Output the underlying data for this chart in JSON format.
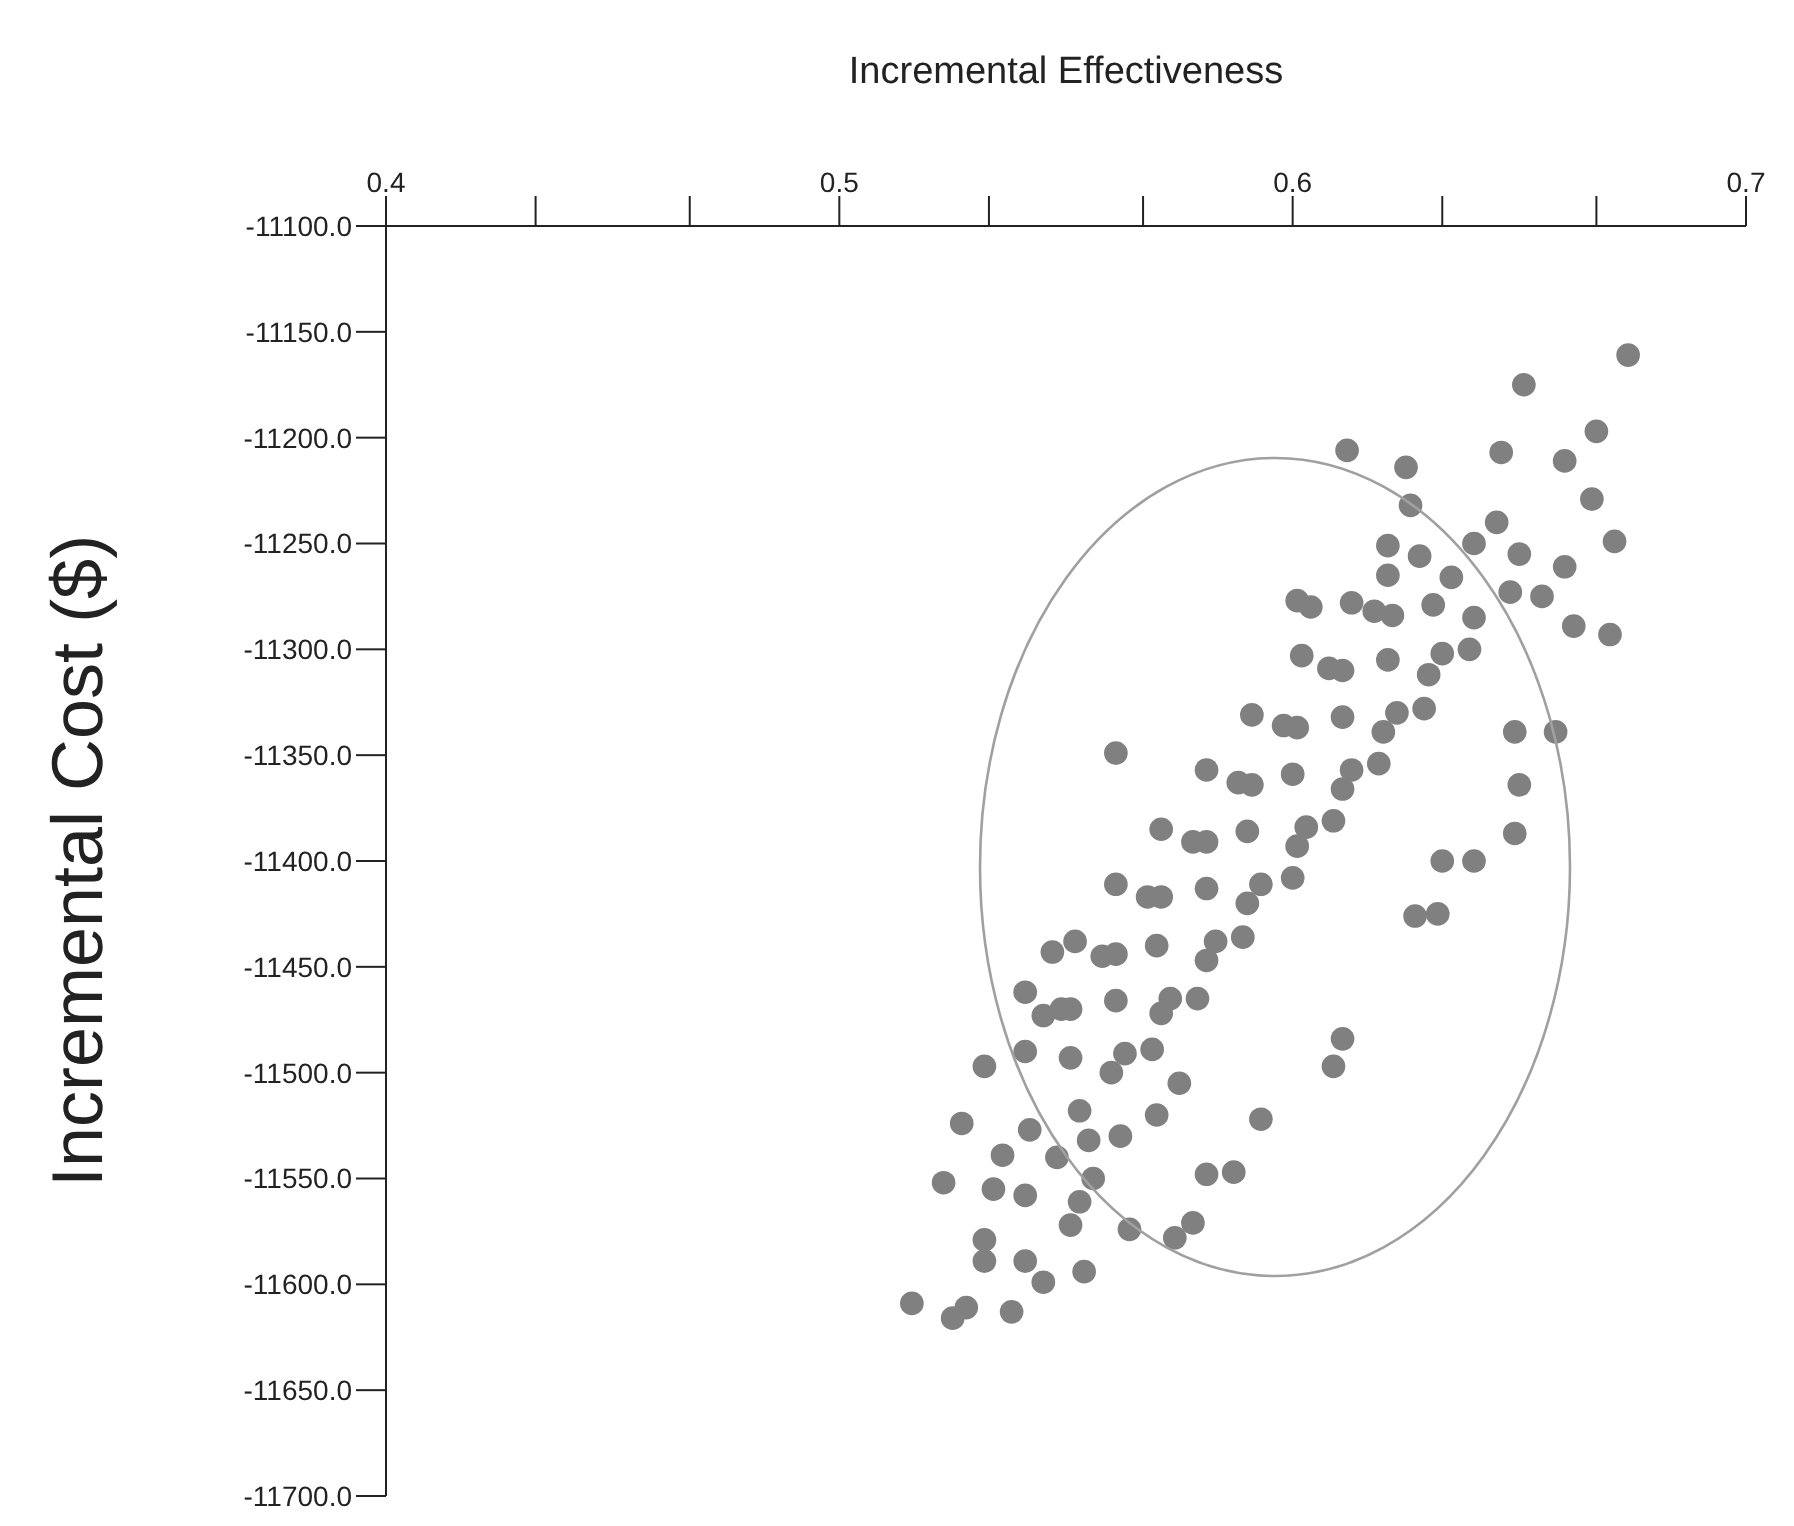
{
  "chart_data": {
    "type": "scatter",
    "xlabel": "Incremental Effectiveness",
    "ylabel": "Incremental Cost ($)",
    "xlim": [
      0.4,
      0.7
    ],
    "ylim": [
      -11700,
      -11100
    ],
    "xticks": [
      0.4,
      {
        "value": 0.433,
        "label": null
      },
      {
        "value": 0.467,
        "label": null
      },
      0.5,
      {
        "value": 0.533,
        "label": null
      },
      {
        "value": 0.567,
        "label": null
      },
      0.6,
      {
        "value": 0.633,
        "label": null
      },
      {
        "value": 0.667,
        "label": null
      },
      0.7
    ],
    "yticks": [
      {
        "value": -11100,
        "label": "-11100.0"
      },
      {
        "value": -11150,
        "label": "-11150.0"
      },
      {
        "value": -11200,
        "label": "-11200.0"
      },
      {
        "value": -11250,
        "label": "-11250.0"
      },
      {
        "value": -11300,
        "label": "-11300.0"
      },
      {
        "value": -11350,
        "label": "-11350.0"
      },
      {
        "value": -11400,
        "label": "-11400.0"
      },
      {
        "value": -11450,
        "label": "-11450.0"
      },
      {
        "value": -11500,
        "label": "-11500.0"
      },
      {
        "value": -11550,
        "label": "-11550.0"
      },
      {
        "value": -11600,
        "label": "-11600.0"
      },
      {
        "value": -11650,
        "label": "-11650.0"
      },
      {
        "value": -11700,
        "label": "-11700.0"
      }
    ],
    "grid": false,
    "legend": false,
    "marker": "circle",
    "color": "#808080",
    "x": [
      0.674,
      0.651,
      0.612,
      0.625,
      0.646,
      0.66,
      0.667,
      0.671,
      0.662,
      0.67,
      0.66,
      0.655,
      0.666,
      0.561,
      0.626,
      0.621,
      0.621,
      0.658,
      0.649,
      0.601,
      0.604,
      0.516,
      0.525,
      0.528,
      0.538,
      0.523,
      0.527,
      0.532,
      0.532,
      0.534,
      0.541,
      0.545,
      0.554,
      0.541,
      0.536,
      0.542,
      0.547,
      0.545,
      0.564,
      0.574,
      0.578,
      0.587,
      0.581,
      0.593,
      0.609,
      0.611,
      0.627,
      0.632,
      0.64,
      0.649,
      0.65,
      0.633,
      0.555,
      0.553,
      0.551,
      0.532,
      0.541,
      0.551,
      0.56,
      0.569,
      0.549,
      0.553,
      0.541,
      0.551,
      0.561,
      0.571,
      0.579,
      0.558,
      0.563,
      0.552,
      0.561,
      0.57,
      0.581,
      0.589,
      0.568,
      0.573,
      0.561,
      0.571,
      0.581,
      0.59,
      0.6,
      0.578,
      0.583,
      0.571,
      0.581,
      0.59,
      0.601,
      0.609,
      0.588,
      0.593,
      0.581,
      0.591,
      0.6,
      0.611,
      0.619,
      0.598,
      0.603,
      0.591,
      0.601,
      0.611,
      0.62,
      0.629,
      0.608,
      0.613,
      0.602,
      0.611,
      0.621,
      0.63,
      0.639,
      0.618,
      0.623,
      0.613,
      0.622,
      0.631,
      0.64,
      0.648,
      0.628,
      0.633,
      0.635,
      0.64,
      0.645,
      0.65,
      0.548,
      0.556,
      0.562,
      0.57,
      0.575
    ],
    "values": [
      -11161,
      -11175,
      -11206,
      -11214,
      -11207,
      -11211,
      -11197,
      -11249,
      -11289,
      -11293,
      -11261,
      -11275,
      -11229,
      -11349,
      -11232,
      -11251,
      -11265,
      -11339,
      -11339,
      -11277,
      -11280,
      -11609,
      -11616,
      -11611,
      -11613,
      -11552,
      -11524,
      -11589,
      -11579,
      -11555,
      -11589,
      -11599,
      -11594,
      -11558,
      -11539,
      -11527,
      -11443,
      -11473,
      -11574,
      -11578,
      -11571,
      -11547,
      -11548,
      -11522,
      -11497,
      -11484,
      -11426,
      -11425,
      -11400,
      -11387,
      -11364,
      -11400,
      -11532,
      -11561,
      -11572,
      -11497,
      -11490,
      -11493,
      -11500,
      -11489,
      -11470,
      -11518,
      -11462,
      -11470,
      -11466,
      -11472,
      -11465,
      -11445,
      -11491,
      -11438,
      -11444,
      -11440,
      -11447,
      -11436,
      -11417,
      -11465,
      -11411,
      -11417,
      -11413,
      -11420,
      -11408,
      -11391,
      -11438,
      -11385,
      -11391,
      -11386,
      -11393,
      -11381,
      -11363,
      -11411,
      -11357,
      -11364,
      -11359,
      -11366,
      -11354,
      -11336,
      -11384,
      -11331,
      -11337,
      -11332,
      -11339,
      -11328,
      -11309,
      -11357,
      -11303,
      -11310,
      -11305,
      -11312,
      -11300,
      -11282,
      -11330,
      -11278,
      -11284,
      -11279,
      -11285,
      -11273,
      -11256,
      -11302,
      -11266,
      -11250,
      -11240,
      -11255,
      -11540,
      -11550,
      -11530,
      -11520,
      -11505
    ]
  }
}
